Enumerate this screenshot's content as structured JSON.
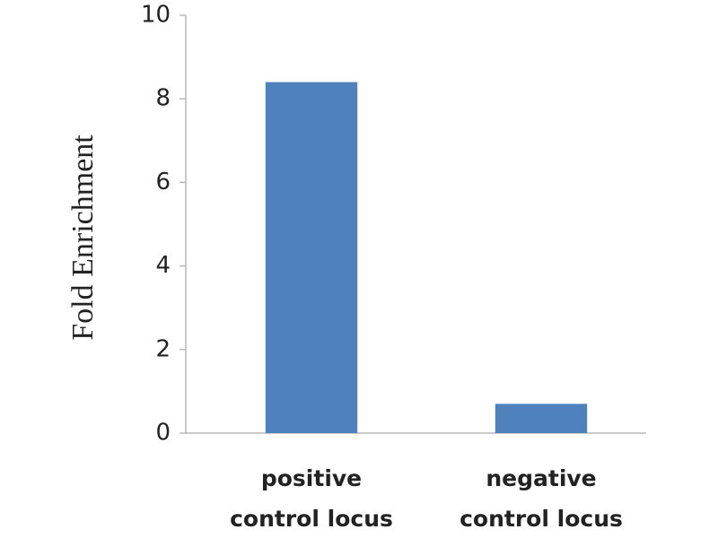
{
  "chart_data": {
    "type": "bar",
    "y_label": "Fold Enrichment",
    "categories": [
      "positive control locus",
      "negative control locus"
    ],
    "values": [
      8.4,
      0.7
    ],
    "color": "#4f81bd",
    "ylim": [
      0,
      10
    ],
    "yticks": [
      0,
      2,
      4,
      6,
      8,
      10
    ],
    "grid": false
  }
}
